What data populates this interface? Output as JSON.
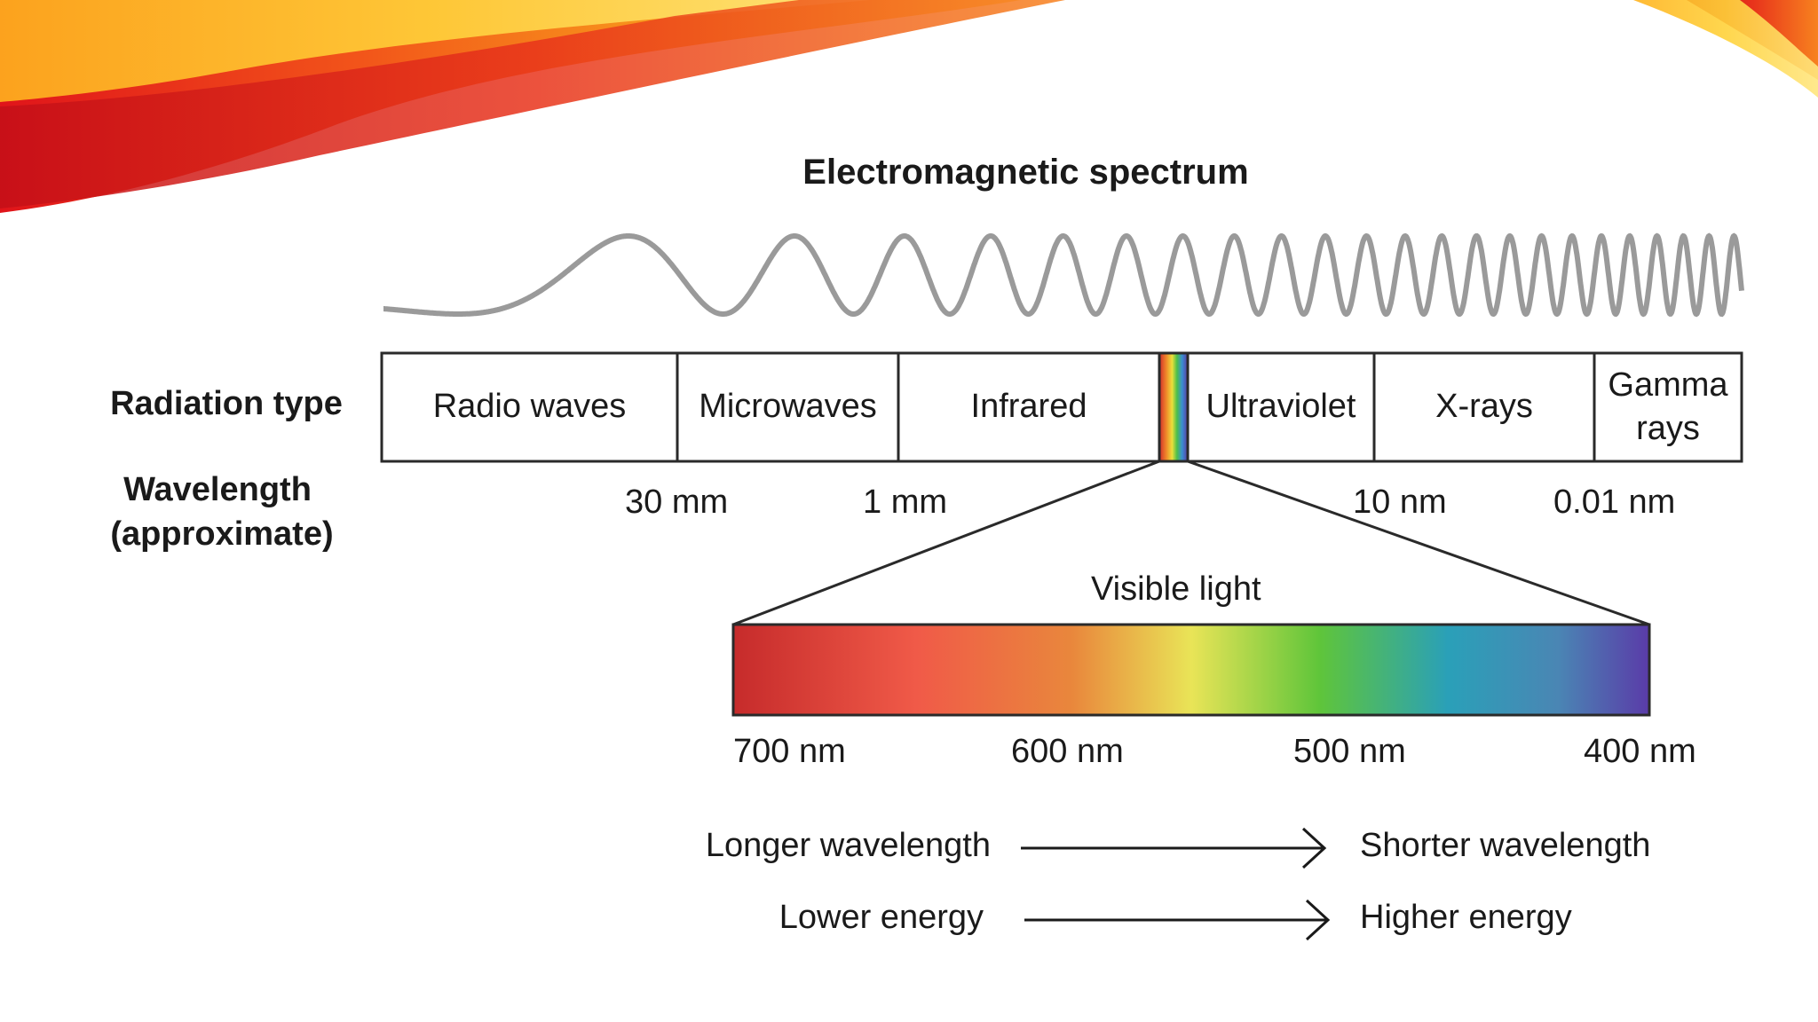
{
  "title": "Electromagnetic spectrum",
  "row_labels": {
    "radiation_type": "Radiation type",
    "wavelength_line1": "Wavelength",
    "wavelength_line2": "(approximate)"
  },
  "radiation_types": [
    "Radio waves",
    "Microwaves",
    "Infrared",
    "Ultraviolet",
    "X-rays",
    "Gamma rays"
  ],
  "wavelength_boundaries": [
    "30 mm",
    "1 mm",
    "10 nm",
    "0.01 nm"
  ],
  "visible_light": {
    "label": "Visible light",
    "ticks": [
      "700 nm",
      "600 nm",
      "500 nm",
      "400 nm"
    ]
  },
  "comparisons": [
    {
      "left": "Longer wavelength",
      "right": "Shorter wavelength"
    },
    {
      "left": "Lower energy",
      "right": "Higher energy"
    }
  ],
  "colors": {
    "wave": "#9a9a9a",
    "box_border": "#2a2a2a",
    "spectrum": [
      "#c62b2b",
      "#f05a48",
      "#e9873c",
      "#e9e457",
      "#5fc53a",
      "#2aa0b8",
      "#4a86b4",
      "#5a3ba8"
    ]
  }
}
